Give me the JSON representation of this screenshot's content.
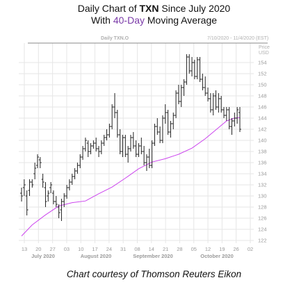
{
  "header": {
    "line1_prefix": "Daily Chart of ",
    "line1_ticker": "TXN",
    "line1_suffix": " Since July 2020",
    "line2_prefix": "With ",
    "line2_highlight": "40-Day",
    "line2_suffix": " Moving Average"
  },
  "caption": "Chart courtesy of Thomson Reuters Eikon",
  "chart_data": {
    "type": "ohlc",
    "chart_label": "Daily TXN.O",
    "date_range": "7/10/2020 - 11/4/2020 (EST)",
    "price_label": "Price",
    "currency_label": "USD",
    "ylim": [
      121.5,
      157.5
    ],
    "y_ticks": [
      122,
      124,
      126,
      128,
      130,
      132,
      134,
      136,
      138,
      140,
      142,
      144,
      146,
      148,
      150,
      152,
      154
    ],
    "x_day_ticks": [
      "13",
      "20",
      "27",
      "03",
      "10",
      "17",
      "24",
      "31",
      "08",
      "14",
      "21",
      "28",
      "05",
      "12",
      "19",
      "26",
      "02"
    ],
    "x_month_labels": [
      "July 2020",
      "August 2020",
      "September 2020",
      "October 2020"
    ],
    "n_bars": 83,
    "grid": true,
    "colors": {
      "bars": "#222222",
      "moving_average": "#cc44ee",
      "grid": "#e6e6e6"
    },
    "series": [
      {
        "name": "40-Day",
        "kind": "moving_average",
        "points": [
          [
            0,
            122.8
          ],
          [
            4,
            124.8
          ],
          [
            9,
            126.6
          ],
          [
            14,
            128.2
          ],
          [
            19,
            128.8
          ],
          [
            24,
            129.1
          ],
          [
            29,
            130.4
          ],
          [
            34,
            131.6
          ],
          [
            39,
            133.2
          ],
          [
            44,
            134.9
          ],
          [
            49,
            136.1
          ],
          [
            54,
            136.7
          ],
          [
            59,
            137.5
          ],
          [
            64,
            138.6
          ],
          [
            69,
            140.3
          ],
          [
            74,
            142.3
          ],
          [
            77,
            143.5
          ],
          [
            80,
            144.0
          ],
          [
            82,
            144.1
          ]
        ]
      },
      {
        "name": "TXN",
        "kind": "ohlc",
        "bars": [
          [
            130.5,
            131.5,
            129.0,
            130.0
          ],
          [
            131.5,
            133.0,
            130.0,
            132.0
          ],
          [
            130.0,
            131.0,
            126.5,
            127.5
          ],
          [
            131.0,
            133.0,
            130.0,
            132.5
          ],
          [
            132.5,
            133.0,
            131.5,
            132.0
          ],
          [
            134.0,
            136.0,
            133.0,
            135.0
          ],
          [
            135.5,
            137.5,
            135.0,
            137.0
          ],
          [
            136.5,
            137.0,
            135.0,
            136.0
          ],
          [
            133.0,
            134.0,
            131.5,
            132.5
          ],
          [
            131.5,
            132.5,
            128.0,
            129.0
          ],
          [
            130.0,
            131.0,
            129.0,
            130.5
          ],
          [
            131.5,
            132.5,
            130.5,
            132.0
          ],
          [
            130.5,
            131.0,
            128.5,
            129.0
          ],
          [
            129.0,
            130.0,
            128.0,
            128.5
          ],
          [
            128.0,
            128.5,
            126.0,
            127.0
          ],
          [
            127.5,
            129.5,
            125.5,
            129.0
          ],
          [
            129.0,
            130.5,
            128.0,
            130.0
          ],
          [
            130.0,
            132.0,
            129.5,
            131.5
          ],
          [
            131.5,
            133.0,
            131.0,
            132.5
          ],
          [
            132.5,
            134.0,
            132.0,
            133.5
          ],
          [
            133.5,
            135.0,
            133.0,
            134.5
          ],
          [
            134.5,
            136.0,
            134.0,
            135.5
          ],
          [
            135.5,
            137.5,
            135.0,
            137.0
          ],
          [
            137.0,
            139.0,
            136.5,
            138.5
          ],
          [
            138.5,
            140.5,
            138.0,
            140.0
          ],
          [
            139.5,
            140.0,
            137.0,
            138.0
          ],
          [
            138.0,
            139.5,
            137.5,
            139.0
          ],
          [
            139.0,
            140.0,
            138.5,
            139.5
          ],
          [
            139.5,
            140.5,
            138.0,
            138.5
          ],
          [
            138.5,
            139.0,
            137.0,
            138.0
          ],
          [
            138.0,
            140.0,
            137.5,
            139.5
          ],
          [
            139.5,
            141.0,
            139.0,
            140.5
          ],
          [
            140.5,
            142.0,
            140.0,
            141.0
          ],
          [
            141.0,
            143.0,
            140.5,
            142.5
          ],
          [
            142.5,
            146.5,
            142.0,
            146.0
          ],
          [
            146.0,
            148.5,
            144.0,
            145.0
          ],
          [
            145.0,
            145.5,
            140.5,
            141.0
          ],
          [
            141.0,
            142.0,
            137.5,
            138.0
          ],
          [
            138.0,
            141.0,
            137.0,
            140.5
          ],
          [
            140.5,
            141.0,
            137.0,
            137.5
          ],
          [
            137.5,
            139.0,
            136.0,
            138.5
          ],
          [
            138.5,
            141.0,
            138.0,
            140.5
          ],
          [
            140.5,
            141.5,
            138.5,
            139.0
          ],
          [
            139.0,
            140.0,
            137.0,
            137.5
          ],
          [
            137.5,
            139.5,
            137.0,
            139.0
          ],
          [
            139.0,
            140.5,
            137.5,
            138.0
          ],
          [
            138.0,
            139.0,
            135.5,
            136.0
          ],
          [
            136.0,
            137.5,
            134.5,
            137.0
          ],
          [
            137.0,
            138.5,
            135.0,
            135.5
          ],
          [
            135.5,
            140.0,
            135.0,
            139.5
          ],
          [
            139.5,
            143.0,
            139.0,
            142.5
          ],
          [
            142.5,
            144.0,
            141.0,
            141.5
          ],
          [
            141.5,
            142.5,
            139.5,
            140.0
          ],
          [
            140.0,
            144.5,
            139.5,
            144.0
          ],
          [
            144.0,
            146.5,
            143.0,
            145.0
          ],
          [
            145.0,
            145.5,
            141.0,
            141.5
          ],
          [
            141.5,
            143.5,
            140.5,
            143.0
          ],
          [
            143.0,
            145.0,
            142.0,
            144.5
          ],
          [
            144.5,
            149.0,
            144.0,
            148.5
          ],
          [
            148.5,
            150.0,
            146.5,
            147.0
          ],
          [
            147.0,
            150.0,
            146.0,
            149.5
          ],
          [
            149.5,
            151.0,
            148.0,
            150.5
          ],
          [
            150.5,
            155.5,
            150.0,
            155.0
          ],
          [
            155.0,
            155.5,
            152.0,
            152.5
          ],
          [
            152.5,
            155.0,
            151.5,
            154.0
          ],
          [
            154.0,
            154.5,
            151.0,
            151.5
          ],
          [
            151.5,
            155.0,
            151.0,
            154.5
          ],
          [
            154.5,
            155.0,
            150.5,
            151.0
          ],
          [
            151.0,
            152.0,
            149.0,
            149.5
          ],
          [
            149.5,
            151.5,
            148.0,
            148.5
          ],
          [
            148.5,
            149.5,
            147.0,
            147.5
          ],
          [
            147.5,
            148.5,
            145.0,
            145.5
          ],
          [
            145.5,
            148.5,
            144.5,
            148.0
          ],
          [
            148.0,
            149.0,
            145.5,
            146.0
          ],
          [
            146.0,
            148.5,
            145.0,
            147.5
          ],
          [
            147.5,
            148.0,
            145.0,
            145.5
          ],
          [
            145.5,
            146.0,
            144.0,
            144.5
          ],
          [
            144.5,
            146.0,
            143.5,
            145.5
          ],
          [
            145.5,
            146.0,
            142.0,
            142.5
          ],
          [
            142.5,
            144.0,
            141.0,
            143.5
          ],
          [
            143.5,
            145.0,
            142.5,
            144.0
          ],
          [
            144.0,
            146.0,
            143.0,
            145.5
          ],
          [
            145.0,
            146.0,
            141.5,
            142.0
          ]
        ]
      }
    ]
  }
}
